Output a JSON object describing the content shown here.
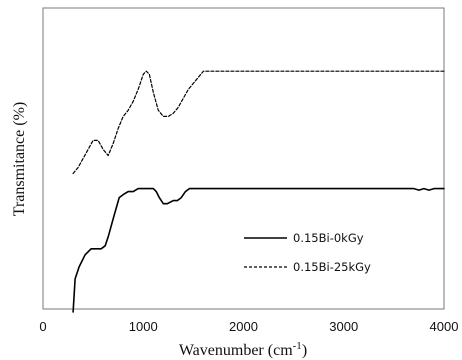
{
  "chart_data": {
    "type": "line",
    "title": "",
    "xlabel": "Wavenumber (cm",
    "xlabel_sup": "-1",
    "xlabel_close": ")",
    "ylabel": "Transmitance (%)",
    "xlim": [
      0,
      4000
    ],
    "ylim": [
      0,
      100
    ],
    "x_ticks": [
      "0",
      "1000",
      "2000",
      "3000",
      "4000"
    ],
    "x_tick_values": [
      0,
      1000,
      2000,
      3000,
      4000
    ],
    "grid": false,
    "legend_position": "bottom-right",
    "series": [
      {
        "name": "0.15Bi-0kGy",
        "style": "solid",
        "color": "#000000",
        "x": [
          300,
          320,
          360,
          420,
          480,
          530,
          580,
          620,
          650,
          700,
          760,
          800,
          850,
          900,
          950,
          1000,
          1050,
          1100,
          1130,
          1160,
          1200,
          1240,
          1300,
          1340,
          1380,
          1420,
          1460,
          1500,
          1550,
          3700,
          3750,
          3800,
          3850,
          3900,
          4000
        ],
        "y": [
          -1,
          10,
          14,
          18,
          20,
          20,
          20,
          21,
          24,
          30,
          37,
          38,
          39,
          39,
          40,
          40,
          40,
          40,
          39,
          37,
          35,
          35,
          36,
          36,
          37,
          39,
          40,
          40,
          40,
          40,
          39.5,
          40,
          39.5,
          40,
          40
        ]
      },
      {
        "name": "0.15Bi-25kGy",
        "style": "dashed",
        "color": "#000000",
        "x": [
          300,
          350,
          400,
          450,
          500,
          550,
          600,
          650,
          700,
          750,
          800,
          850,
          900,
          950,
          1000,
          1030,
          1060,
          1100,
          1150,
          1200,
          1250,
          1300,
          1350,
          1400,
          1450,
          1500,
          1550,
          1600,
          1650,
          4000
        ],
        "y": [
          45,
          47,
          50,
          53,
          56,
          56,
          53,
          51,
          55,
          60,
          64,
          66,
          69,
          73,
          78,
          79,
          78,
          72,
          66,
          64,
          64,
          65,
          67,
          70,
          73,
          75,
          77,
          79,
          79,
          79
        ]
      }
    ]
  }
}
